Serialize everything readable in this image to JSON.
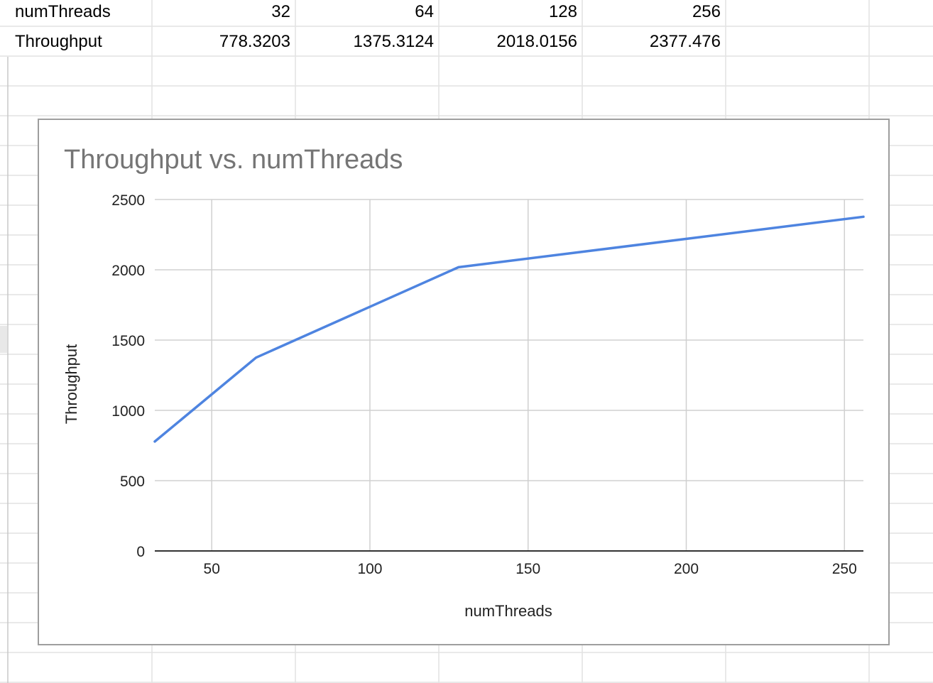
{
  "sheet": {
    "rows": [
      {
        "label": "numThreads",
        "values": [
          "32",
          "64",
          "128",
          "256"
        ]
      },
      {
        "label": "Throughput",
        "values": [
          "778.3203",
          "1375.3124",
          "2018.0156",
          "2377.476"
        ]
      }
    ]
  },
  "chart_data": {
    "type": "line",
    "title": "Throughput vs. numThreads",
    "xlabel": "numThreads",
    "ylabel": "Throughput",
    "x": [
      32,
      64,
      128,
      256
    ],
    "series": [
      {
        "values": [
          778.3203,
          1375.3124,
          2018.0156,
          2377.476
        ],
        "color": "#4e84e0"
      }
    ],
    "xlim": [
      32,
      256
    ],
    "ylim": [
      0,
      2500
    ],
    "xticks": [
      50,
      100,
      150,
      200,
      250
    ],
    "yticks": [
      0,
      500,
      1000,
      1500,
      2000,
      2500
    ],
    "xtick_labels": [
      "50",
      "100",
      "150",
      "200",
      "250"
    ],
    "ytick_labels": [
      "0",
      "500",
      "1000",
      "1500",
      "2000",
      "2500"
    ],
    "grid": true,
    "legend": "none"
  },
  "colors": {
    "gridline": "#d0d0d0",
    "sheet_grid": "#e2e2e2",
    "title": "#757575"
  }
}
